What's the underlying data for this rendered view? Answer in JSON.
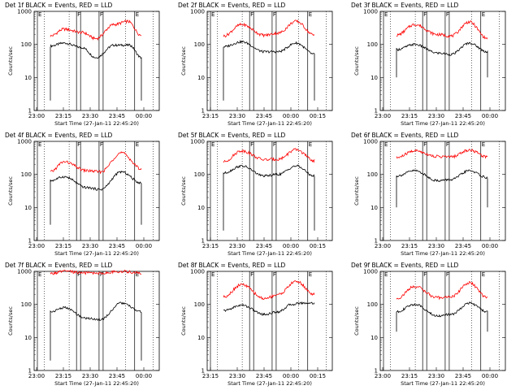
{
  "figure": {
    "ylabel": "Counts/sec",
    "xlabel": "Start Time (27-Jan-11 22:45:20)",
    "xticks": [
      "23:00",
      "23:15",
      "23:30",
      "23:45",
      "00:00",
      "00:15"
    ],
    "yticks": [
      "1",
      "10",
      "100",
      "1000"
    ],
    "marker_labels": [
      "E",
      "F",
      "F",
      "E"
    ],
    "colors": {
      "events": "#000000",
      "lld": "#ff0000"
    }
  },
  "chart_data": [
    {
      "type": "line",
      "title": "Det 1f BLACK = Events, RED = LLD",
      "panel_xticks": [
        "23:00",
        "23:15",
        "23:30",
        "23:45",
        "00:00",
        "00:15"
      ],
      "xlabel": "Start Time (27-Jan-11 22:45:20)",
      "ylabel": "Counts/sec",
      "ylim": [
        1,
        1000
      ],
      "yscale": "log",
      "series": [
        {
          "name": "Events",
          "color": "#000000",
          "anchors": [
            [
              0,
              90
            ],
            [
              0.15,
              110
            ],
            [
              0.35,
              80
            ],
            [
              0.5,
              40
            ],
            [
              0.7,
              95
            ],
            [
              0.87,
              95
            ],
            [
              1,
              40
            ]
          ],
          "end_drop": 2
        },
        {
          "name": "LLD",
          "color": "#ff0000",
          "anchors": [
            [
              0,
              180
            ],
            [
              0.15,
              290
            ],
            [
              0.35,
              230
            ],
            [
              0.5,
              150
            ],
            [
              0.7,
              400
            ],
            [
              0.85,
              500
            ],
            [
              1,
              190
            ]
          ]
        }
      ]
    },
    {
      "type": "line",
      "title": "Det 2f BLACK = Events, RED = LLD",
      "panel_xticks": [
        "23:15",
        "23:30",
        "23:45",
        "00:00",
        "00:15"
      ],
      "xlabel": "Start Time (27-Jan-11 22:45:20)",
      "ylabel": "Counts/sec",
      "ylim": [
        1,
        1000
      ],
      "yscale": "log",
      "series": [
        {
          "name": "Events",
          "color": "#000000",
          "anchors": [
            [
              0,
              85
            ],
            [
              0.2,
              120
            ],
            [
              0.45,
              60
            ],
            [
              0.6,
              60
            ],
            [
              0.8,
              110
            ],
            [
              1,
              50
            ]
          ],
          "end_drop": 2
        },
        {
          "name": "LLD",
          "color": "#ff0000",
          "anchors": [
            [
              0,
              180
            ],
            [
              0.2,
              400
            ],
            [
              0.45,
              190
            ],
            [
              0.6,
              220
            ],
            [
              0.8,
              500
            ],
            [
              1,
              190
            ]
          ]
        }
      ]
    },
    {
      "type": "line",
      "title": "Det 3f BLACK = Events, RED = LLD",
      "panel_xticks": [
        "23:00",
        "23:15",
        "23:30",
        "23:45",
        "00:00",
        "00:15"
      ],
      "xlabel": "Start Time (27-Jan-11 22:45:20)",
      "ylabel": "Counts/sec",
      "ylim": [
        1,
        1000
      ],
      "yscale": "log",
      "series": [
        {
          "name": "Events",
          "color": "#000000",
          "anchors": [
            [
              0,
              70
            ],
            [
              0.2,
              100
            ],
            [
              0.45,
              55
            ],
            [
              0.6,
              50
            ],
            [
              0.8,
              110
            ],
            [
              1,
              60
            ]
          ],
          "end_drop": 10
        },
        {
          "name": "LLD",
          "color": "#ff0000",
          "anchors": [
            [
              0,
              190
            ],
            [
              0.2,
              400
            ],
            [
              0.45,
              200
            ],
            [
              0.6,
              180
            ],
            [
              0.8,
              480
            ],
            [
              1,
              150
            ]
          ]
        }
      ]
    },
    {
      "type": "line",
      "title": "Det 4f BLACK = Events, RED = LLD",
      "panel_xticks": [
        "23:00",
        "23:15",
        "23:30",
        "23:45",
        "00:00",
        "00:15"
      ],
      "xlabel": "Start Time (27-Jan-11 22:45:20)",
      "ylabel": "Counts/sec",
      "ylim": [
        1,
        1000
      ],
      "yscale": "log",
      "series": [
        {
          "name": "Events",
          "color": "#000000",
          "anchors": [
            [
              0,
              65
            ],
            [
              0.15,
              85
            ],
            [
              0.4,
              40
            ],
            [
              0.55,
              35
            ],
            [
              0.78,
              120
            ],
            [
              1,
              55
            ]
          ],
          "end_drop": 3
        },
        {
          "name": "LLD",
          "color": "#ff0000",
          "anchors": [
            [
              0,
              120
            ],
            [
              0.15,
              240
            ],
            [
              0.4,
              130
            ],
            [
              0.55,
              120
            ],
            [
              0.78,
              450
            ],
            [
              1,
              150
            ]
          ]
        }
      ]
    },
    {
      "type": "line",
      "title": "Det 5f BLACK = Events, RED = LLD",
      "panel_xticks": [
        "23:15",
        "23:30",
        "23:45",
        "00:00",
        "00:15"
      ],
      "xlabel": "Start Time (27-Jan-11 22:45:20)",
      "ylabel": "Counts/sec",
      "ylim": [
        1,
        1000
      ],
      "yscale": "log",
      "series": [
        {
          "name": "Events",
          "color": "#000000",
          "anchors": [
            [
              0,
              110
            ],
            [
              0.2,
              180
            ],
            [
              0.45,
              90
            ],
            [
              0.6,
              100
            ],
            [
              0.8,
              180
            ],
            [
              1,
              90
            ]
          ],
          "end_drop": 2
        },
        {
          "name": "LLD",
          "color": "#ff0000",
          "anchors": [
            [
              0,
              240
            ],
            [
              0.2,
              520
            ],
            [
              0.45,
              280
            ],
            [
              0.6,
              290
            ],
            [
              0.8,
              560
            ],
            [
              1,
              260
            ]
          ]
        }
      ]
    },
    {
      "type": "line",
      "title": "Det 6f BLACK = Events, RED = LLD",
      "panel_xticks": [
        "23:00",
        "23:15",
        "23:30",
        "23:45",
        "00:00",
        "00:15"
      ],
      "xlabel": "Start Time (27-Jan-11 22:45:20)",
      "ylabel": "Counts/sec",
      "ylim": [
        1,
        1000
      ],
      "yscale": "log",
      "series": [
        {
          "name": "Events",
          "color": "#000000",
          "anchors": [
            [
              0,
              90
            ],
            [
              0.2,
              130
            ],
            [
              0.45,
              65
            ],
            [
              0.6,
              70
            ],
            [
              0.8,
              130
            ],
            [
              1,
              80
            ]
          ],
          "end_drop": 10
        },
        {
          "name": "LLD",
          "color": "#ff0000",
          "anchors": [
            [
              0,
              320
            ],
            [
              0.2,
              520
            ],
            [
              0.45,
              350
            ],
            [
              0.6,
              340
            ],
            [
              0.8,
              550
            ],
            [
              1,
              340
            ]
          ]
        }
      ]
    },
    {
      "type": "line",
      "title": "Det 7f BLACK = Events, RED = LLD",
      "panel_xticks": [
        "23:00",
        "23:15",
        "23:30",
        "23:45",
        "00:00",
        "00:15"
      ],
      "xlabel": "Start Time (27-Jan-11 22:45:20)",
      "ylabel": "Counts/sec",
      "ylim": [
        1,
        1000
      ],
      "yscale": "log",
      "series": [
        {
          "name": "Events",
          "color": "#000000",
          "anchors": [
            [
              0,
              60
            ],
            [
              0.15,
              80
            ],
            [
              0.4,
              38
            ],
            [
              0.55,
              35
            ],
            [
              0.78,
              110
            ],
            [
              1,
              60
            ]
          ],
          "end_drop": 2
        },
        {
          "name": "LLD",
          "color": "#ff0000",
          "anchors": [
            [
              0,
              850
            ],
            [
              0.15,
              1000
            ],
            [
              0.4,
              900
            ],
            [
              0.55,
              880
            ],
            [
              0.78,
              1000
            ],
            [
              1,
              900
            ]
          ]
        }
      ]
    },
    {
      "type": "line",
      "title": "Det 8f BLACK = Events, RED = LLD",
      "panel_xticks": [
        "23:15",
        "23:30",
        "23:45",
        "00:00",
        "00:15"
      ],
      "xlabel": "Start Time (27-Jan-11 22:45:20)",
      "ylabel": "Counts/sec",
      "ylim": [
        1,
        1000
      ],
      "yscale": "log",
      "series": [
        {
          "name": "Events",
          "color": "#000000",
          "anchors": [
            [
              0,
              65
            ],
            [
              0.2,
              95
            ],
            [
              0.45,
              50
            ],
            [
              0.6,
              60
            ],
            [
              0.75,
              100
            ],
            [
              0.85,
              110
            ]
          ],
          "end_drop": 0
        },
        {
          "name": "LLD",
          "color": "#ff0000",
          "anchors": [
            [
              0,
              170
            ],
            [
              0.2,
              400
            ],
            [
              0.45,
              150
            ],
            [
              0.6,
              200
            ],
            [
              0.8,
              500
            ],
            [
              1,
              200
            ]
          ]
        }
      ]
    },
    {
      "type": "line",
      "title": "Det 9f BLACK = Events, RED = LLD",
      "panel_xticks": [
        "23:00",
        "23:15",
        "23:30",
        "23:45",
        "00:00",
        "00:15"
      ],
      "xlabel": "Start Time (27-Jan-11 22:45:20)",
      "ylabel": "Counts/sec",
      "ylim": [
        1,
        1000
      ],
      "yscale": "log",
      "series": [
        {
          "name": "Events",
          "color": "#000000",
          "anchors": [
            [
              0,
              60
            ],
            [
              0.2,
              100
            ],
            [
              0.45,
              45
            ],
            [
              0.6,
              50
            ],
            [
              0.8,
              110
            ],
            [
              1,
              60
            ]
          ],
          "end_drop": 15
        },
        {
          "name": "LLD",
          "color": "#ff0000",
          "anchors": [
            [
              0,
              150
            ],
            [
              0.2,
              350
            ],
            [
              0.45,
              160
            ],
            [
              0.6,
              170
            ],
            [
              0.8,
              450
            ],
            [
              1,
              160
            ]
          ]
        }
      ]
    }
  ]
}
